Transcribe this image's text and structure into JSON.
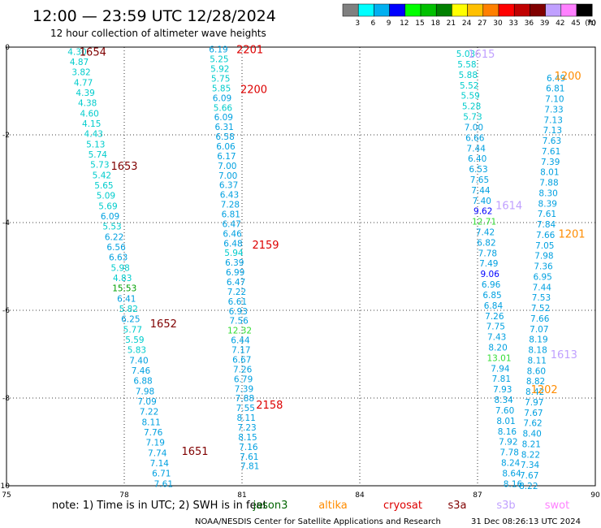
{
  "header": {
    "title": "12:00 — 23:59 UTC 12/28/2024",
    "subtitle": "12 hour collection of altimeter wave heights"
  },
  "legend_scale": {
    "labels": [
      "3",
      "6",
      "9",
      "12",
      "15",
      "18",
      "21",
      "24",
      "27",
      "30",
      "33",
      "36",
      "39",
      "42",
      "45",
      "70"
    ],
    "unit": "(ft)",
    "colors": [
      "#808080",
      "#00ffff",
      "#00b0f0",
      "#0000ff",
      "#00ff00",
      "#00c000",
      "#008000",
      "#ffff00",
      "#ffc000",
      "#ff8000",
      "#ff0000",
      "#c00000",
      "#800000",
      "#c0a0ff",
      "#ff80ff",
      "#000000"
    ]
  },
  "footer": {
    "note": "note:  1) Time is in UTC; 2) SWH is in feet",
    "credit": "NOAA/NESDIS Center for Satellite Applications and Research",
    "timestamp": "31 Dec 08:26:13 UTC 2024",
    "missions": [
      {
        "name": "jason3",
        "color": "#006400"
      },
      {
        "name": "altika",
        "color": "#ff8c00"
      },
      {
        "name": "cryosat",
        "color": "#dd0000"
      },
      {
        "name": "s3a",
        "color": "#800000"
      },
      {
        "name": "s3b",
        "color": "#c0a0ff"
      },
      {
        "name": "swot",
        "color": "#ff80ff"
      }
    ]
  },
  "chart_data": {
    "type": "scatter",
    "x_ticks": [
      "75",
      "78",
      "81",
      "84",
      "87",
      "90"
    ],
    "y_ticks": [
      "0",
      "-2",
      "-4",
      "-6",
      "-8",
      "-10"
    ],
    "xlim": [
      75,
      90
    ],
    "ylim": [
      -10,
      0
    ],
    "grid": true,
    "time_labels": [
      {
        "text": "1654",
        "x": 77.2,
        "y": -0.1,
        "color": "#800000"
      },
      {
        "text": "1653",
        "x": 78.0,
        "y": -2.7,
        "color": "#800000"
      },
      {
        "text": "1652",
        "x": 79.0,
        "y": -6.3,
        "color": "#800000"
      },
      {
        "text": "1651",
        "x": 79.8,
        "y": -9.2,
        "color": "#800000"
      },
      {
        "text": "2201",
        "x": 81.2,
        "y": -0.05,
        "color": "#dd0000"
      },
      {
        "text": "2200",
        "x": 81.3,
        "y": -0.95,
        "color": "#dd0000"
      },
      {
        "text": "2159",
        "x": 81.6,
        "y": -4.5,
        "color": "#dd0000"
      },
      {
        "text": "2158",
        "x": 81.7,
        "y": -8.15,
        "color": "#dd0000"
      },
      {
        "text": "1615",
        "x": 87.1,
        "y": -0.15,
        "color": "#c0a0ff"
      },
      {
        "text": "1614",
        "x": 87.8,
        "y": -3.6,
        "color": "#c0a0ff"
      },
      {
        "text": "1613",
        "x": 89.2,
        "y": -7.0,
        "color": "#c0a0ff"
      },
      {
        "text": "1200",
        "x": 89.3,
        "y": -0.65,
        "color": "#ff8c00"
      },
      {
        "text": "1201",
        "x": 89.4,
        "y": -4.25,
        "color": "#ff8c00"
      },
      {
        "text": "1202",
        "x": 88.7,
        "y": -7.8,
        "color": "#ff8c00"
      }
    ],
    "series": [
      {
        "name": "s3a",
        "start": [
          76.8,
          -0.1
        ],
        "end": [
          79.0,
          -9.95
        ],
        "values": [
          "4.30",
          "4.87",
          "3.82",
          "4.77",
          "4.39",
          "4.38",
          "4.60",
          "4.15",
          "4.43",
          "5.13",
          "5.74",
          "5.73",
          "5.42",
          "5.65",
          "5.09",
          "5.69",
          "6.09",
          "5.53",
          "6.22",
          "6.56",
          "6.63",
          "5.98",
          "4.83",
          "15.53",
          "6.41",
          "5.82",
          "6.25",
          "5.77",
          "5.59",
          "5.83",
          "7.40",
          "7.46",
          "6.88",
          "7.98",
          "7.09",
          "7.22",
          "8.11",
          "7.76",
          "7.19",
          "7.74",
          "7.14",
          "6.71",
          "7.61"
        ]
      },
      {
        "name": "cryosat",
        "start": [
          80.4,
          -0.05
        ],
        "end": [
          81.2,
          -9.55
        ],
        "values": [
          "6.19",
          "5.25",
          "5.92",
          "5.75",
          "5.85",
          "6.09",
          "5.66",
          "6.09",
          "6.31",
          "6.58",
          "6.06",
          "6.17",
          "7.00",
          "7.00",
          "6.37",
          "6.43",
          "7.28",
          "6.81",
          "6.47",
          "6.46",
          "6.48",
          "5.94",
          "6.39",
          "6.99",
          "6.47",
          "7.22",
          "6.61",
          "6.93",
          "7.56",
          "12.32",
          "6.44",
          "7.17",
          "6.67",
          "7.26",
          "6.79",
          "7.39",
          "7.88",
          "7.55",
          "8.11",
          "7.23",
          "8.15",
          "7.16",
          "7.61",
          "7.81"
        ]
      },
      {
        "name": "s3b",
        "start": [
          86.7,
          -0.15
        ],
        "end": [
          87.9,
          -9.95
        ],
        "values": [
          "5.03",
          "5.58",
          "5.88",
          "5.52",
          "5.59",
          "5.28",
          "5.73",
          "7.00",
          "6.66",
          "7.44",
          "6.40",
          "6.53",
          "7.65",
          "7.44",
          "7.40",
          "9.62",
          "12.71",
          "7.42",
          "6.82",
          "7.78",
          "7.49",
          "9.06",
          "6.96",
          "6.85",
          "6.84",
          "7.26",
          "7.75",
          "7.43",
          "8.20",
          "13.01",
          "7.94",
          "7.81",
          "7.93",
          "8.34",
          "7.60",
          "8.01",
          "8.16",
          "7.92",
          "7.78",
          "8.24",
          "8.64",
          "8.16"
        ]
      },
      {
        "name": "altika",
        "start": [
          89.0,
          -0.7
        ],
        "end": [
          88.3,
          -10.0
        ],
        "values": [
          "6.49",
          "6.81",
          "7.10",
          "7.33",
          "7.13",
          "7.13",
          "7.63",
          "7.61",
          "7.39",
          "8.01",
          "7.88",
          "8.30",
          "8.39",
          "7.61",
          "7.84",
          "7.66",
          "7.05",
          "7.98",
          "7.36",
          "6.95",
          "7.44",
          "7.53",
          "7.52",
          "7.66",
          "7.07",
          "8.19",
          "8.18",
          "8.11",
          "8.60",
          "8.82",
          "8.42",
          "7.97",
          "7.67",
          "7.62",
          "8.40",
          "8.21",
          "8.22",
          "7.34",
          "7.67",
          "8.22"
        ]
      }
    ]
  }
}
